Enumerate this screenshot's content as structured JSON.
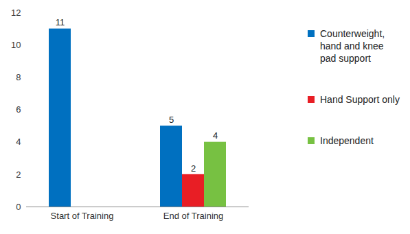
{
  "chart_data": {
    "type": "bar",
    "categories": [
      "Start of Training",
      "End of Training"
    ],
    "series": [
      {
        "name": "Counterweight, hand and knee pad support",
        "color": "#0070C0",
        "values": [
          11,
          5
        ]
      },
      {
        "name": "Hand Support only",
        "color": "#E81E25",
        "values": [
          null,
          2
        ]
      },
      {
        "name": "Independent",
        "color": "#77C142",
        "values": [
          null,
          4
        ]
      }
    ],
    "ylim": [
      0,
      12
    ],
    "yticks": [
      0,
      2,
      4,
      6,
      8,
      10,
      12
    ],
    "grid": false,
    "data_labels": true,
    "legend": "right"
  }
}
